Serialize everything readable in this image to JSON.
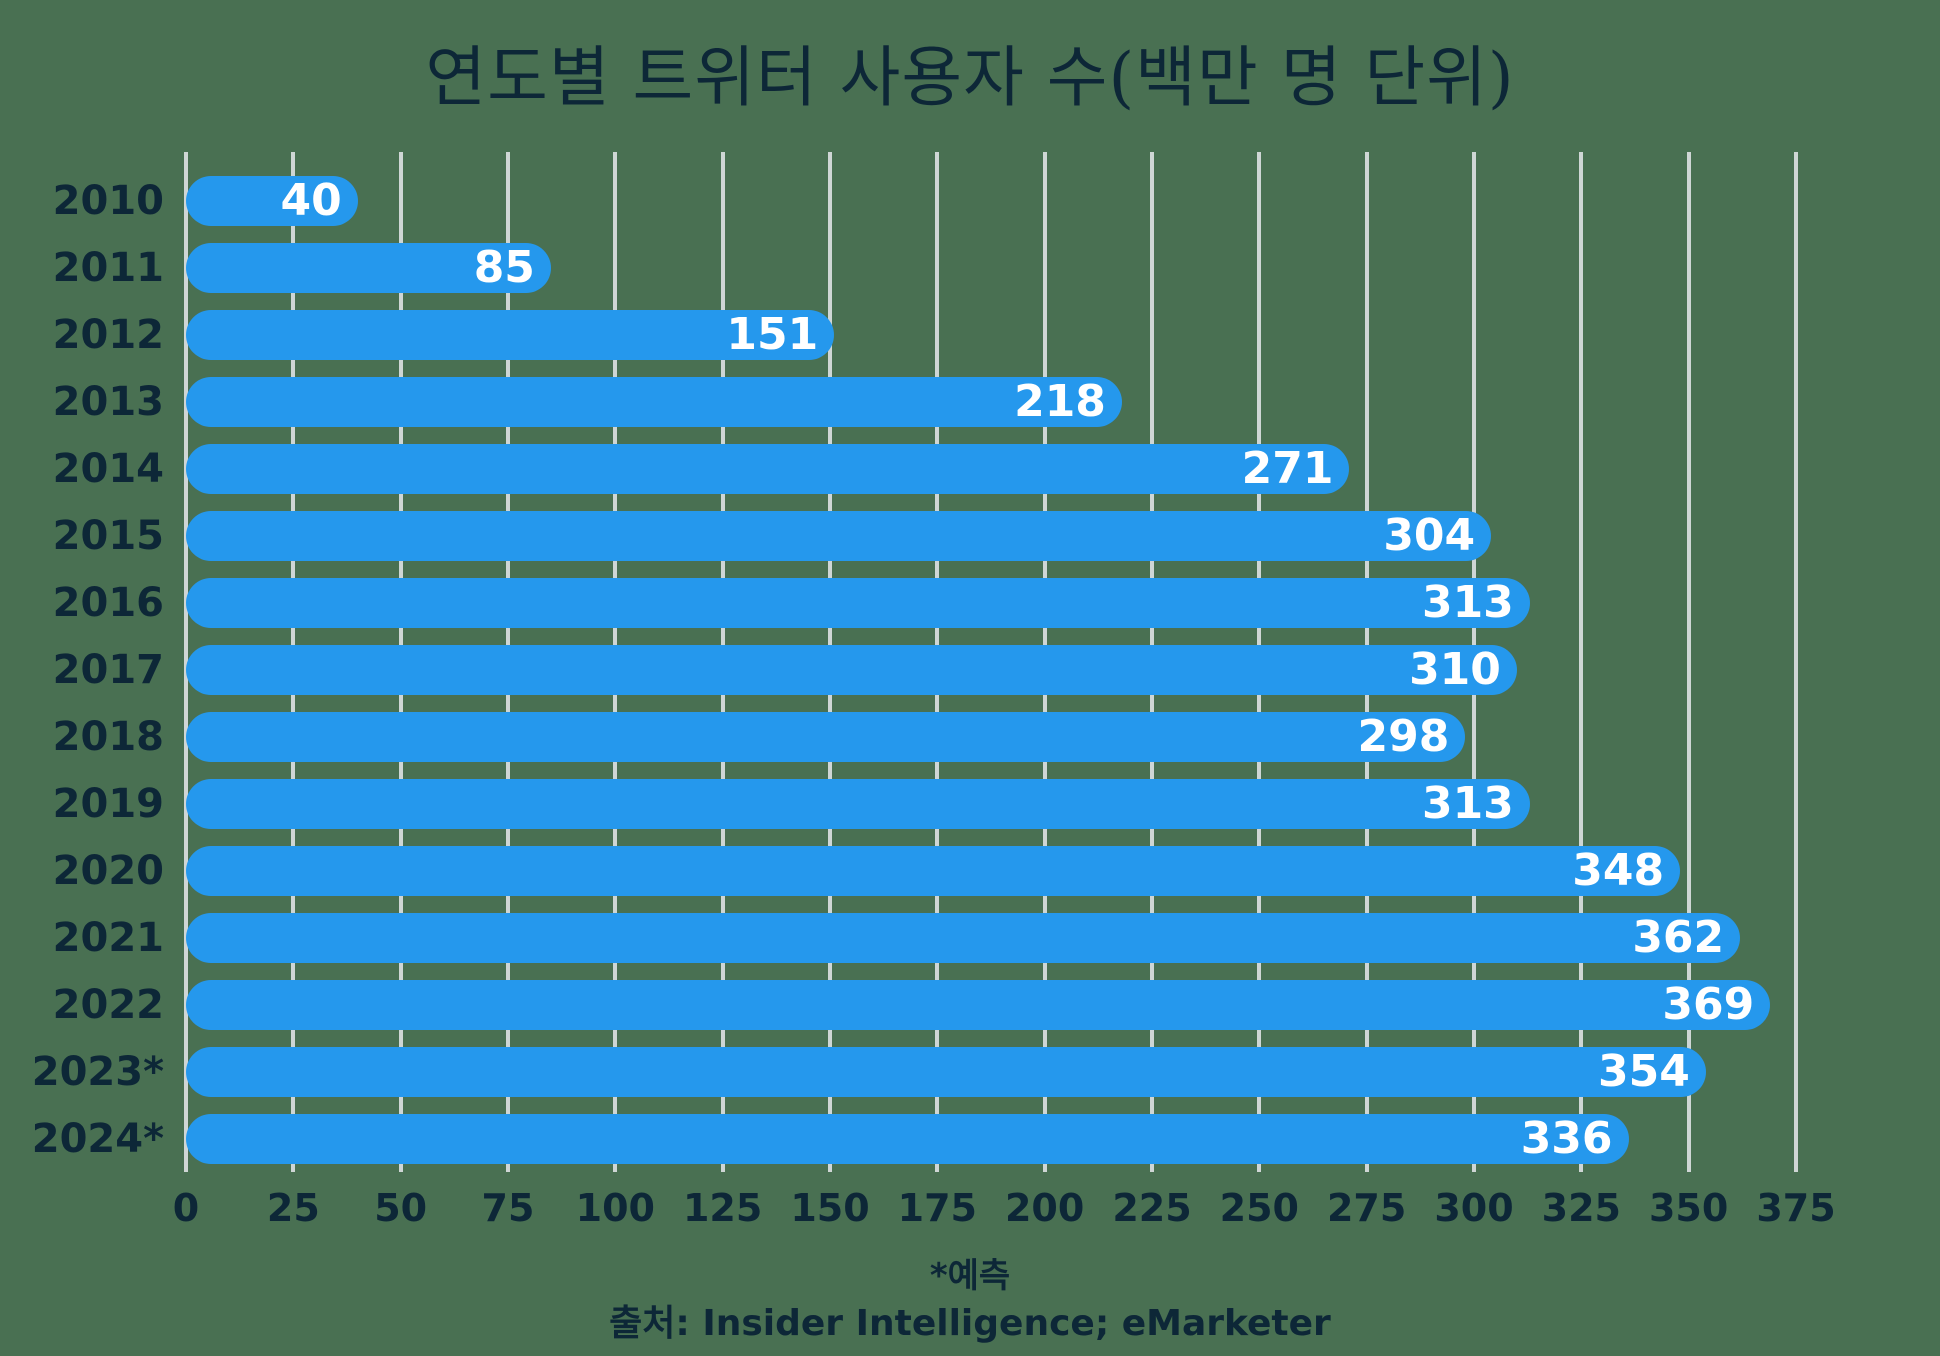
{
  "chart_data": {
    "type": "bar",
    "orientation": "horizontal",
    "title": "연도별 트위터 사용자 수(백만 명 단위)",
    "categories": [
      "2010",
      "2011",
      "2012",
      "2013",
      "2014",
      "2015",
      "2016",
      "2017",
      "2018",
      "2019",
      "2020",
      "2021",
      "2022",
      "2023*",
      "2024*"
    ],
    "values": [
      40,
      85,
      151,
      218,
      271,
      304,
      313,
      310,
      298,
      313,
      348,
      362,
      369,
      354,
      336
    ],
    "xlim": [
      0,
      375
    ],
    "x_ticks": [
      0,
      25,
      50,
      75,
      100,
      125,
      150,
      175,
      200,
      225,
      250,
      275,
      300,
      325,
      350,
      375
    ],
    "grid": "vertical",
    "legend": "none",
    "value_labels": "inside-end",
    "footnote": "*예측",
    "source": "출처: Insider Intelligence; eMarketer",
    "colors": {
      "background": "#497052",
      "bar": "#2598ED",
      "text": "#0D2737",
      "gridline": "#CFD6D5",
      "value_label": "#FFFFFF"
    }
  }
}
